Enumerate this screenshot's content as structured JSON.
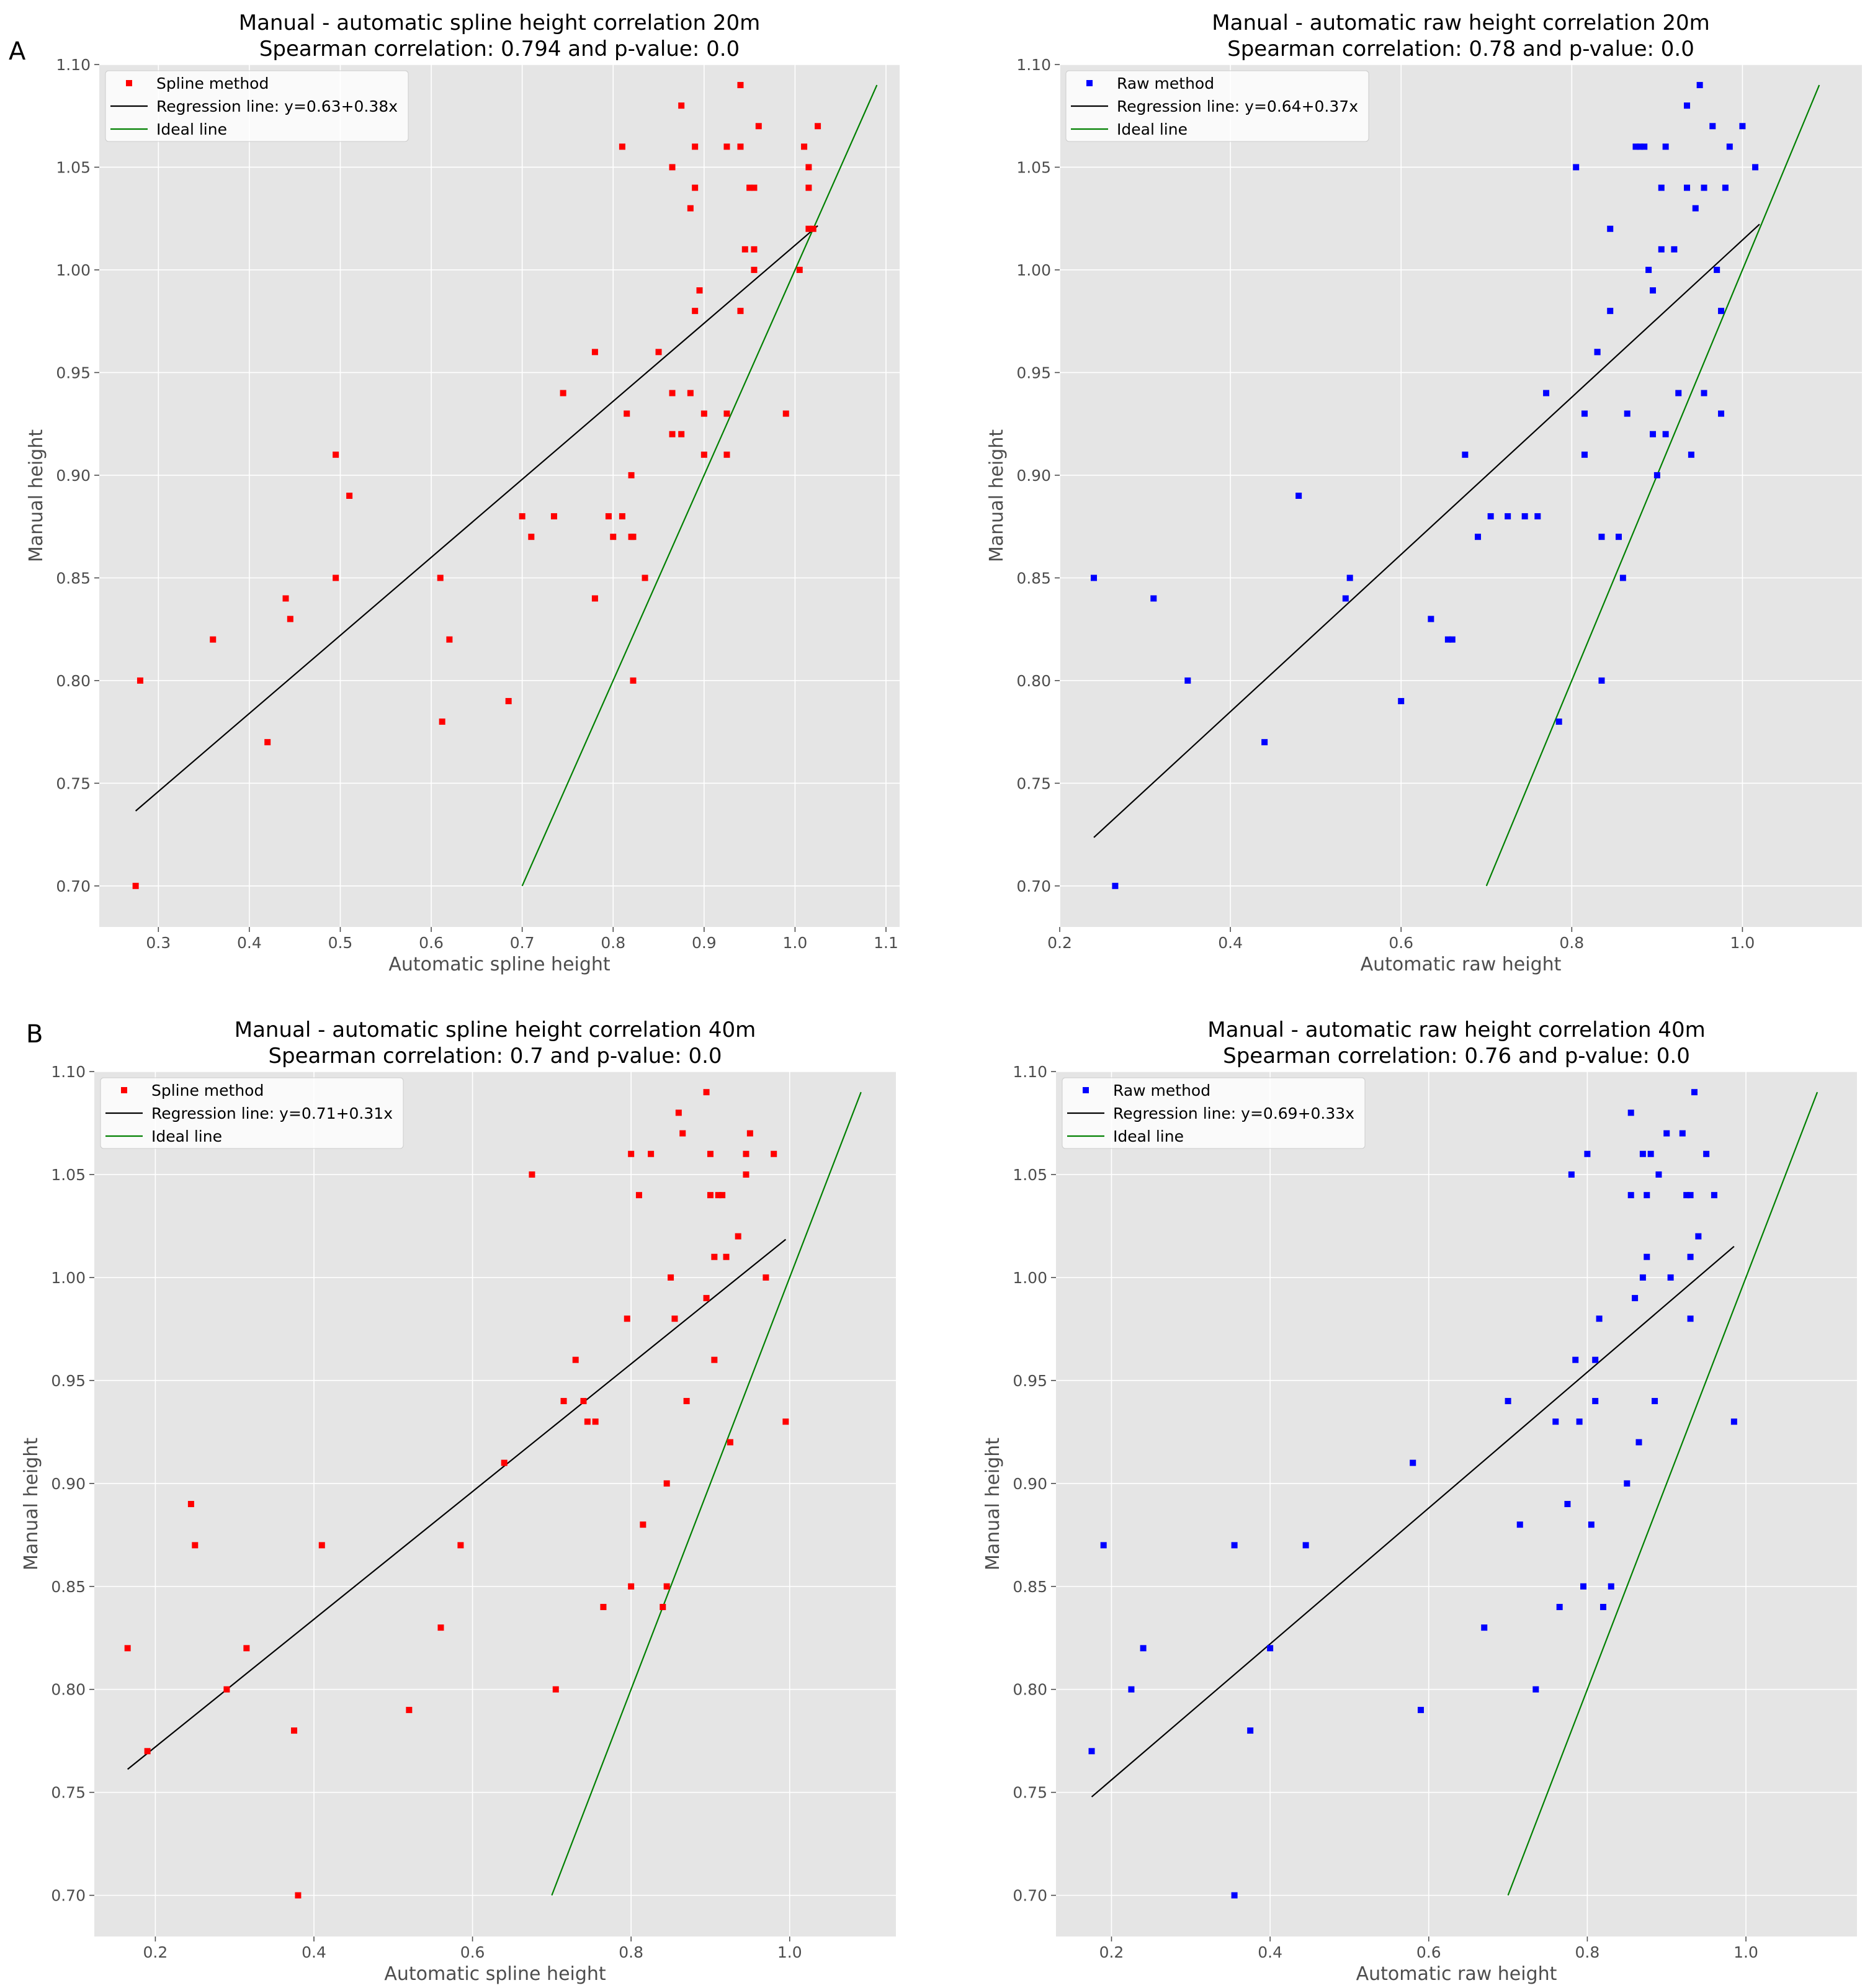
{
  "panel_labels": [
    "A",
    "B"
  ],
  "chart_data": [
    {
      "type": "scatter",
      "title_line1": "Manual - automatic spline height correlation 20m",
      "title_line2": "Spearman correlation: 0.794 and p-value: 0.0",
      "xlabel": "Automatic spline height",
      "ylabel": "Manual height",
      "xlim": [
        0.235,
        1.115
      ],
      "ylim": [
        0.68,
        1.1
      ],
      "xticks": [
        0.3,
        0.4,
        0.5,
        0.6,
        0.7,
        0.8,
        0.9,
        1.0,
        1.1
      ],
      "xtick_labels": [
        "0.3",
        "0.4",
        "0.5",
        "0.6",
        "0.7",
        "0.8",
        "0.9",
        "1.0",
        "1.1"
      ],
      "yticks": [
        0.7,
        0.75,
        0.8,
        0.85,
        0.9,
        0.95,
        1.0,
        1.05,
        1.1
      ],
      "ytick_labels": [
        "0.70",
        "0.75",
        "0.80",
        "0.85",
        "0.90",
        "0.95",
        "1.00",
        "1.05",
        "1.10"
      ],
      "grid": true,
      "legend_position": "top-left",
      "series": [
        {
          "name": "Spline method",
          "kind": "points",
          "color": "#ff0000",
          "x": [
            0.275,
            0.28,
            0.36,
            0.42,
            0.44,
            0.445,
            0.495,
            0.495,
            0.51,
            0.61,
            0.612,
            0.62,
            0.685,
            0.7,
            0.71,
            0.735,
            0.745,
            0.78,
            0.78,
            0.795,
            0.8,
            0.81,
            0.81,
            0.815,
            0.82,
            0.82,
            0.822,
            0.822,
            0.835,
            0.85,
            0.865,
            0.865,
            0.865,
            0.875,
            0.875,
            0.885,
            0.885,
            0.89,
            0.89,
            0.89,
            0.895,
            0.9,
            0.9,
            0.925,
            0.925,
            0.925,
            0.94,
            0.94,
            0.94,
            0.945,
            0.95,
            0.955,
            0.955,
            0.955,
            0.96,
            0.99,
            1.005,
            1.01,
            1.015,
            1.015,
            1.015,
            1.02,
            1.025
          ],
          "y": [
            0.7,
            0.8,
            0.82,
            0.77,
            0.84,
            0.83,
            0.91,
            0.85,
            0.89,
            0.85,
            0.78,
            0.82,
            0.79,
            0.88,
            0.87,
            0.88,
            0.94,
            0.96,
            0.84,
            0.88,
            0.87,
            1.06,
            0.88,
            0.93,
            0.87,
            0.9,
            0.87,
            0.8,
            0.85,
            0.96,
            1.05,
            0.94,
            0.92,
            1.08,
            0.92,
            1.03,
            0.94,
            1.06,
            1.04,
            0.98,
            0.99,
            0.91,
            0.93,
            1.06,
            0.93,
            0.91,
            1.09,
            1.06,
            0.98,
            1.01,
            1.04,
            1.01,
            1.04,
            1.0,
            1.07,
            0.93,
            1.0,
            1.06,
            1.04,
            1.05,
            1.02,
            1.02,
            1.07
          ]
        },
        {
          "name": "Regression line: y=0.63+0.38x",
          "kind": "line",
          "color": "#000000",
          "x": [
            0.275,
            1.025
          ],
          "y": [
            0.7365,
            1.0215
          ]
        },
        {
          "name": "Ideal line",
          "kind": "line",
          "color": "#008000",
          "x": [
            0.7,
            1.09
          ],
          "y": [
            0.7,
            1.09
          ]
        }
      ]
    },
    {
      "type": "scatter",
      "title_line1": "Manual - automatic raw height correlation 20m",
      "title_line2": "Spearman correlation: 0.78 and p-value: 0.0",
      "xlabel": "Automatic raw height",
      "ylabel": "Manual height",
      "xlim": [
        0.2,
        1.14
      ],
      "ylim": [
        0.68,
        1.1
      ],
      "xticks": [
        0.2,
        0.4,
        0.6,
        0.8,
        1.0
      ],
      "xtick_labels": [
        "0.2",
        "0.4",
        "0.6",
        "0.8",
        "1.0"
      ],
      "yticks": [
        0.7,
        0.75,
        0.8,
        0.85,
        0.9,
        0.95,
        1.0,
        1.05,
        1.1
      ],
      "ytick_labels": [
        "0.70",
        "0.75",
        "0.80",
        "0.85",
        "0.90",
        "0.95",
        "1.00",
        "1.05",
        "1.10"
      ],
      "grid": true,
      "legend_position": "top-left",
      "series": [
        {
          "name": "Raw method",
          "kind": "points",
          "color": "#0000ff",
          "x": [
            0.24,
            0.265,
            0.31,
            0.35,
            0.44,
            0.48,
            0.535,
            0.54,
            0.6,
            0.635,
            0.655,
            0.66,
            0.675,
            0.69,
            0.705,
            0.725,
            0.745,
            0.76,
            0.77,
            0.785,
            0.805,
            0.815,
            0.815,
            0.83,
            0.83,
            0.835,
            0.835,
            0.845,
            0.845,
            0.855,
            0.86,
            0.865,
            0.875,
            0.88,
            0.885,
            0.89,
            0.895,
            0.895,
            0.9,
            0.905,
            0.905,
            0.91,
            0.91,
            0.92,
            0.925,
            0.935,
            0.935,
            0.94,
            0.945,
            0.95,
            0.955,
            0.955,
            0.965,
            0.97,
            0.975,
            0.975,
            0.98,
            0.985,
            1.0,
            1.015
          ],
          "y": [
            0.85,
            0.7,
            0.84,
            0.8,
            0.77,
            0.89,
            0.84,
            0.85,
            0.79,
            0.83,
            0.82,
            0.82,
            0.91,
            0.87,
            0.88,
            0.88,
            0.88,
            0.88,
            0.94,
            0.78,
            1.05,
            0.93,
            0.91,
            0.96,
            0.96,
            0.87,
            0.8,
            1.02,
            0.98,
            0.87,
            0.85,
            0.93,
            1.06,
            1.06,
            1.06,
            1.0,
            0.99,
            0.92,
            0.9,
            1.01,
            1.04,
            1.06,
            0.92,
            1.01,
            0.94,
            1.08,
            1.04,
            0.91,
            1.03,
            1.09,
            0.94,
            1.04,
            1.07,
            1.0,
            0.98,
            0.93,
            1.04,
            1.06,
            1.07,
            1.05
          ]
        },
        {
          "name": "Regression line: y=0.64+0.37x",
          "kind": "line",
          "color": "#000000",
          "x": [
            0.24,
            1.02
          ],
          "y": [
            0.7236,
            1.0222
          ]
        },
        {
          "name": "Ideal line",
          "kind": "line",
          "color": "#008000",
          "x": [
            0.7,
            1.09
          ],
          "y": [
            0.7,
            1.09
          ]
        }
      ]
    },
    {
      "type": "scatter",
      "title_line1": "Manual - automatic spline height correlation 40m",
      "title_line2": "Spearman correlation: 0.7 and p-value: 0.0",
      "xlabel": "Automatic spline height",
      "ylabel": "Manual height",
      "xlim": [
        0.123,
        1.134
      ],
      "ylim": [
        0.68,
        1.1
      ],
      "xticks": [
        0.2,
        0.4,
        0.6,
        0.8,
        1.0
      ],
      "xtick_labels": [
        "0.2",
        "0.4",
        "0.6",
        "0.8",
        "1.0"
      ],
      "yticks": [
        0.7,
        0.75,
        0.8,
        0.85,
        0.9,
        0.95,
        1.0,
        1.05,
        1.1
      ],
      "ytick_labels": [
        "0.70",
        "0.75",
        "0.80",
        "0.85",
        "0.90",
        "0.95",
        "1.00",
        "1.05",
        "1.10"
      ],
      "grid": true,
      "legend_position": "top-left",
      "series": [
        {
          "name": "Spline method",
          "kind": "points",
          "color": "#ff0000",
          "x": [
            0.165,
            0.19,
            0.245,
            0.25,
            0.29,
            0.315,
            0.375,
            0.38,
            0.41,
            0.52,
            0.56,
            0.585,
            0.64,
            0.675,
            0.705,
            0.715,
            0.73,
            0.74,
            0.745,
            0.755,
            0.765,
            0.795,
            0.8,
            0.8,
            0.81,
            0.815,
            0.825,
            0.84,
            0.845,
            0.845,
            0.85,
            0.855,
            0.86,
            0.865,
            0.87,
            0.895,
            0.895,
            0.9,
            0.9,
            0.905,
            0.905,
            0.91,
            0.915,
            0.92,
            0.925,
            0.935,
            0.945,
            0.945,
            0.95,
            0.97,
            0.98,
            0.995
          ],
          "y": [
            0.82,
            0.77,
            0.89,
            0.87,
            0.8,
            0.82,
            0.78,
            0.7,
            0.87,
            0.79,
            0.83,
            0.87,
            0.91,
            1.05,
            0.8,
            0.94,
            0.96,
            0.94,
            0.93,
            0.93,
            0.84,
            0.98,
            0.85,
            1.06,
            1.04,
            0.88,
            1.06,
            0.84,
            0.85,
            0.9,
            1.0,
            0.98,
            1.08,
            1.07,
            0.94,
            0.99,
            1.09,
            1.06,
            1.04,
            1.01,
            0.96,
            1.04,
            1.04,
            1.01,
            0.92,
            1.02,
            1.05,
            1.06,
            1.07,
            1.0,
            1.06,
            0.93
          ]
        },
        {
          "name": "Regression line: y=0.71+0.31x",
          "kind": "line",
          "color": "#000000",
          "x": [
            0.165,
            0.995
          ],
          "y": [
            0.7612,
            1.0185
          ]
        },
        {
          "name": "Ideal line",
          "kind": "line",
          "color": "#008000",
          "x": [
            0.7,
            1.09
          ],
          "y": [
            0.7,
            1.09
          ]
        }
      ]
    },
    {
      "type": "scatter",
      "title_line1": "Manual - automatic raw height correlation 40m",
      "title_line2": "Spearman correlation: 0.76 and p-value: 0.0",
      "xlabel": "Automatic raw height",
      "ylabel": "Manual height",
      "xlim": [
        0.13,
        1.14
      ],
      "ylim": [
        0.68,
        1.1
      ],
      "xticks": [
        0.2,
        0.4,
        0.6,
        0.8,
        1.0
      ],
      "xtick_labels": [
        "0.2",
        "0.4",
        "0.6",
        "0.8",
        "1.0"
      ],
      "yticks": [
        0.7,
        0.75,
        0.8,
        0.85,
        0.9,
        0.95,
        1.0,
        1.05,
        1.1
      ],
      "ytick_labels": [
        "0.70",
        "0.75",
        "0.80",
        "0.85",
        "0.90",
        "0.95",
        "1.00",
        "1.05",
        "1.10"
      ],
      "grid": true,
      "legend_position": "top-left",
      "series": [
        {
          "name": "Raw method",
          "kind": "points",
          "color": "#0000ff",
          "x": [
            0.175,
            0.19,
            0.225,
            0.24,
            0.355,
            0.355,
            0.375,
            0.4,
            0.445,
            0.58,
            0.59,
            0.67,
            0.7,
            0.715,
            0.735,
            0.76,
            0.765,
            0.775,
            0.78,
            0.785,
            0.79,
            0.795,
            0.8,
            0.805,
            0.81,
            0.81,
            0.815,
            0.82,
            0.83,
            0.85,
            0.855,
            0.855,
            0.86,
            0.865,
            0.87,
            0.87,
            0.875,
            0.875,
            0.88,
            0.885,
            0.89,
            0.9,
            0.905,
            0.92,
            0.925,
            0.93,
            0.93,
            0.93,
            0.935,
            0.94,
            0.95,
            0.96,
            0.985
          ],
          "y": [
            0.77,
            0.87,
            0.8,
            0.82,
            0.87,
            0.7,
            0.78,
            0.82,
            0.87,
            0.91,
            0.79,
            0.83,
            0.94,
            0.88,
            0.8,
            0.93,
            0.84,
            0.89,
            1.05,
            0.96,
            0.93,
            0.85,
            1.06,
            0.88,
            0.94,
            0.96,
            0.98,
            0.84,
            0.85,
            0.9,
            1.04,
            1.08,
            0.99,
            0.92,
            1.06,
            1.0,
            1.01,
            1.04,
            1.06,
            0.94,
            1.05,
            1.07,
            1.0,
            1.07,
            1.04,
            1.04,
            1.01,
            0.98,
            1.09,
            1.02,
            1.06,
            1.04,
            0.93
          ]
        },
        {
          "name": "Regression line: y=0.69+0.33x",
          "kind": "line",
          "color": "#000000",
          "x": [
            0.175,
            0.985
          ],
          "y": [
            0.7478,
            1.0151
          ]
        },
        {
          "name": "Ideal line",
          "kind": "line",
          "color": "#008000",
          "x": [
            0.7,
            1.09
          ],
          "y": [
            0.7,
            1.09
          ]
        }
      ]
    }
  ]
}
